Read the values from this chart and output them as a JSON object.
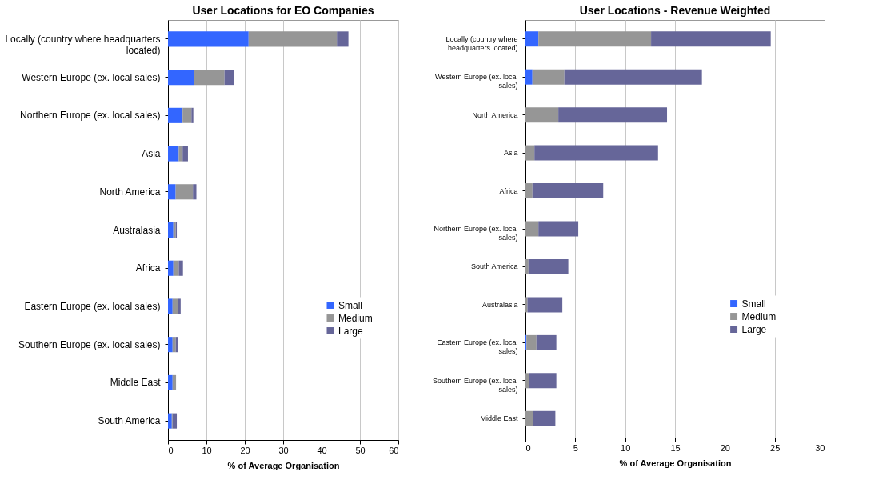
{
  "chart_data": [
    {
      "type": "bar",
      "orientation": "horizontal",
      "stacked": true,
      "title": "User Locations for EO Companies",
      "xlabel": "% of Average Organisation",
      "categories": [
        "Locally (country where headquarters located)",
        "Western Europe (ex. local sales)",
        "Northern Europe (ex. local sales)",
        "Asia",
        "North America",
        "Australasia",
        "Africa",
        "Eastern Europe (ex. local sales)",
        "Southern Europe (ex. local sales)",
        "Middle East",
        "South America"
      ],
      "series": [
        {
          "name": "Small",
          "color": "#3366ff",
          "values": [
            21,
            6.7,
            3.8,
            2.8,
            2,
            1.4,
            1.4,
            1.2,
            1.2,
            1.2,
            1
          ]
        },
        {
          "name": "Medium",
          "color": "#969696",
          "values": [
            23,
            8,
            2.3,
            1,
            4.5,
            0.6,
            1.4,
            1.5,
            0.8,
            0.9,
            0.2
          ]
        },
        {
          "name": "Large",
          "color": "#666699",
          "values": [
            3,
            2.5,
            0.5,
            1.4,
            0.9,
            0.3,
            1.1,
            0.6,
            0.5,
            0,
            1.1
          ]
        }
      ],
      "xlim": [
        0,
        60
      ],
      "xticks": [
        0,
        10,
        20,
        30,
        40,
        50,
        60
      ],
      "grid": "x",
      "legend": "right"
    },
    {
      "type": "bar",
      "orientation": "horizontal",
      "stacked": true,
      "title": "User Locations - Revenue Weighted",
      "xlabel": "% of Average Organisation",
      "categories": [
        "Locally (country where headquarters located)",
        "Western Europe (ex. local sales)",
        "North America",
        "Asia",
        "Africa",
        "Northern Europe (ex. local sales)",
        "South America",
        "Australasia",
        "Eastern Europe (ex. local sales)",
        "Southern Europe (ex. local sales)",
        "Middle East"
      ],
      "series": [
        {
          "name": "Small",
          "color": "#3366ff",
          "values": [
            1.3,
            0.7,
            0,
            0,
            0,
            0,
            0,
            0,
            0.1,
            0,
            0
          ]
        },
        {
          "name": "Medium",
          "color": "#969696",
          "values": [
            11.3,
            3.2,
            3.3,
            0.9,
            0.7,
            1.3,
            0.3,
            0.2,
            1,
            0.4,
            0.8
          ]
        },
        {
          "name": "Large",
          "color": "#666699",
          "values": [
            12,
            13.8,
            10.9,
            12.4,
            7.1,
            4,
            4,
            3.5,
            2,
            2.7,
            2.2
          ]
        }
      ],
      "xlim": [
        0,
        30
      ],
      "xticks": [
        0,
        5,
        10,
        15,
        20,
        25,
        30
      ],
      "grid": "x",
      "legend": "right"
    }
  ]
}
